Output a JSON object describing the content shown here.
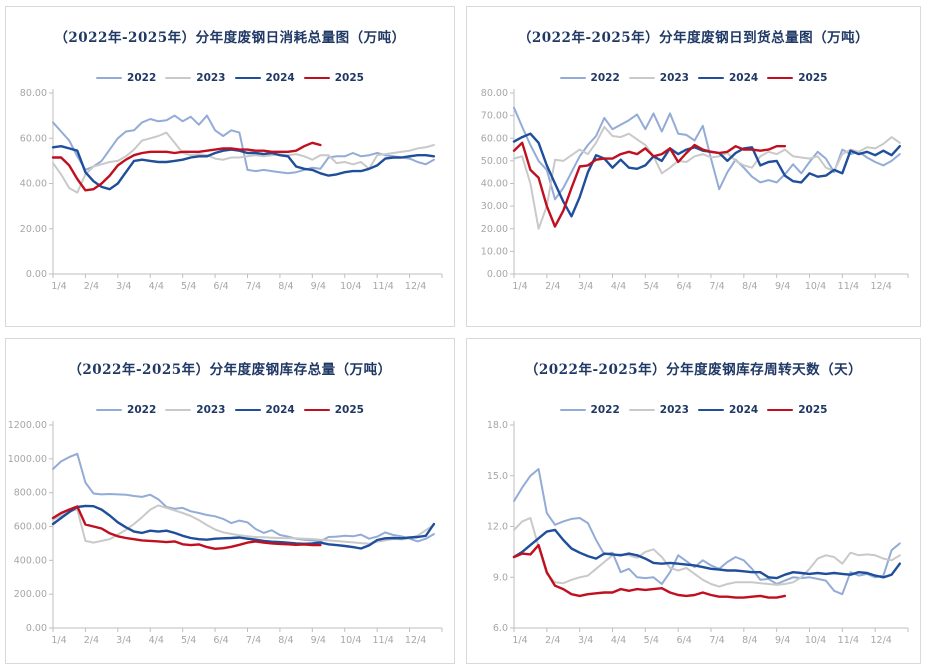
{
  "page": {
    "background": "#ffffff",
    "panel_border": "#d9d9d9"
  },
  "colors": {
    "title_text": "#1f3864",
    "legend_text": "#1f3864",
    "axis_line": "#bfbfbf",
    "tick_text": "#a6a6a6",
    "series": {
      "2022": "#93acd7",
      "2023": "#c9c9c9",
      "2024": "#1f4e9b",
      "2025": "#c00f1e"
    }
  },
  "x_axis_labels": [
    "1/4",
    "2/4",
    "3/4",
    "4/4",
    "5/4",
    "6/4",
    "7/4",
    "8/4",
    "9/4",
    "10/4",
    "11/4",
    "12/4"
  ],
  "chart_data": [
    {
      "type": "line",
      "title": "（2022年-2025年）分年度废钢日消耗总量图（万吨）",
      "ylabel": "万吨",
      "ylim": [
        0,
        80
      ],
      "ytick_step": 20,
      "ytick_decimals": 2,
      "x_range": [
        1,
        13
      ],
      "grid": false,
      "legend_position": "top",
      "legend": [
        "2022",
        "2023",
        "2024",
        "2025"
      ],
      "series": [
        {
          "name": "2022",
          "x0": 1,
          "dx": 0.25,
          "values": [
            67,
            63,
            59,
            52,
            46,
            47.5,
            50,
            55,
            60,
            63,
            63.5,
            67,
            68.5,
            67.5,
            68,
            70,
            67.5,
            69.5,
            66,
            70,
            63.5,
            61,
            63.5,
            62.5,
            46,
            45.5,
            46,
            45.5,
            45,
            44.5,
            45,
            46,
            47,
            46.5,
            51.5,
            52,
            52,
            53.5,
            52,
            52.5,
            53.5,
            52.5,
            52,
            51.5,
            51,
            49.5,
            48.5,
            50.5
          ]
        },
        {
          "name": "2023",
          "x0": 1,
          "dx": 0.25,
          "values": [
            49,
            44,
            38,
            36,
            44,
            47.5,
            48.5,
            49.5,
            50,
            52,
            55,
            59,
            60,
            61,
            62.5,
            58,
            53.5,
            52.5,
            53,
            52.5,
            51,
            50.5,
            51.5,
            51.5,
            52,
            52.5,
            52,
            52.5,
            53,
            52.5,
            53,
            52,
            50.5,
            52.5,
            52.5,
            49,
            49.5,
            48.5,
            49.5,
            46.5,
            52.5,
            53,
            53.5,
            54,
            54.5,
            55.5,
            56,
            57
          ]
        },
        {
          "name": "2024",
          "x0": 1,
          "dx": 0.25,
          "values": [
            56,
            56.5,
            55.5,
            54.5,
            45,
            41,
            38.5,
            37.5,
            40,
            45,
            50,
            50.5,
            50,
            49.5,
            49.5,
            50,
            50.5,
            51.5,
            52,
            52,
            53.5,
            54.5,
            55,
            54.5,
            53.5,
            53.5,
            53,
            53.5,
            52.5,
            52,
            47.5,
            46.5,
            46,
            44.5,
            43.5,
            44,
            45,
            45.5,
            45.5,
            46.5,
            48,
            51,
            51.5,
            51.5,
            52,
            52.5,
            52.5,
            52
          ]
        },
        {
          "name": "2025",
          "x0": 1,
          "dx": 0.25,
          "values": [
            51.5,
            51.5,
            48,
            42,
            37,
            37.5,
            40,
            43.5,
            48,
            50.5,
            52.5,
            53.5,
            54,
            54,
            54,
            53.5,
            54,
            54,
            54,
            54.5,
            55,
            55.5,
            55.5,
            55,
            55,
            54.5,
            54.5,
            54,
            54,
            54,
            54.5,
            56.5,
            58,
            57
          ]
        }
      ]
    },
    {
      "type": "line",
      "title": "（2022年-2025年）分年度废钢日到货总量图（万吨）",
      "ylabel": "万吨",
      "ylim": [
        0,
        80
      ],
      "ytick_step": 10,
      "ytick_decimals": 2,
      "x_range": [
        1,
        13
      ],
      "grid": false,
      "legend_position": "top",
      "legend": [
        "2022",
        "2023",
        "2024",
        "2025"
      ],
      "series": [
        {
          "name": "2022",
          "x0": 1,
          "dx": 0.25,
          "values": [
            73.5,
            65,
            57,
            50,
            46,
            33,
            38,
            45,
            52,
            57,
            61,
            69,
            64,
            66,
            68,
            70.5,
            64,
            71,
            63,
            71,
            62,
            61.5,
            59,
            65.5,
            51,
            37.5,
            45,
            50.5,
            47,
            43,
            40.5,
            41.5,
            40.5,
            44,
            48.5,
            44.5,
            49.5,
            54,
            51,
            45,
            55,
            53,
            54,
            51.5,
            49.5,
            48,
            50,
            53
          ]
        },
        {
          "name": "2023",
          "x0": 1,
          "dx": 0.25,
          "values": [
            51,
            52,
            40,
            20,
            30,
            50.5,
            50,
            52.5,
            55,
            53,
            58,
            65,
            61,
            60.5,
            62,
            59.5,
            57,
            52,
            44.5,
            47,
            50,
            49.5,
            52,
            53,
            51.5,
            52,
            53.5,
            50,
            48,
            47,
            52,
            54,
            53,
            55,
            52,
            51.5,
            51,
            52,
            47,
            45.5,
            53,
            55,
            54,
            56,
            55.5,
            57.5,
            60.5,
            58
          ]
        },
        {
          "name": "2024",
          "x0": 1,
          "dx": 0.25,
          "values": [
            58.5,
            60.5,
            62,
            58,
            48,
            40,
            32,
            25.5,
            34,
            45,
            52.5,
            51,
            47,
            50.5,
            47,
            46.5,
            48,
            52,
            50,
            55.5,
            53,
            55,
            56,
            54.5,
            54,
            53.5,
            50,
            53.5,
            55.5,
            56,
            48,
            49.5,
            50,
            43.5,
            41,
            40.5,
            44.5,
            43,
            43.5,
            46,
            44.5,
            54.5,
            53,
            54,
            52.5,
            54.5,
            52.5,
            56.5
          ]
        },
        {
          "name": "2025",
          "x0": 1,
          "dx": 0.25,
          "values": [
            54.5,
            58,
            46,
            42.5,
            30,
            21,
            28,
            38,
            47.5,
            48,
            50.5,
            51,
            51,
            53,
            54,
            53,
            55.5,
            52,
            53,
            55.5,
            49.5,
            53.5,
            57,
            55,
            54,
            53.5,
            54,
            56.5,
            55,
            55,
            54.5,
            55,
            56.5,
            56.5
          ]
        }
      ]
    },
    {
      "type": "line",
      "title": "（2022年-2025年）分年度废钢库存总量（万吨）",
      "ylabel": "万吨",
      "ylim": [
        0,
        1200
      ],
      "ytick_step": 200,
      "ytick_decimals": 2,
      "x_range": [
        1,
        13
      ],
      "grid": false,
      "legend_position": "top",
      "legend": [
        "2022",
        "2023",
        "2024",
        "2025"
      ],
      "series": [
        {
          "name": "2022",
          "x0": 1,
          "dx": 0.25,
          "values": [
            940,
            985,
            1010,
            1030,
            860,
            795,
            790,
            792,
            790,
            788,
            780,
            775,
            788,
            760,
            715,
            705,
            710,
            690,
            680,
            668,
            660,
            645,
            620,
            635,
            625,
            585,
            562,
            578,
            550,
            540,
            528,
            522,
            518,
            512,
            538,
            540,
            545,
            542,
            552,
            528,
            540,
            565,
            550,
            542,
            528,
            512,
            528,
            555
          ]
        },
        {
          "name": "2023",
          "x0": 1,
          "dx": 0.25,
          "values": [
            640,
            665,
            690,
            700,
            515,
            505,
            515,
            525,
            552,
            580,
            615,
            655,
            700,
            725,
            710,
            695,
            680,
            662,
            638,
            608,
            582,
            565,
            556,
            548,
            542,
            538,
            536,
            534,
            532,
            531,
            530,
            528,
            526,
            522,
            518,
            514,
            510,
            506,
            502,
            498,
            510,
            518,
            526,
            524,
            530,
            546,
            578,
            610
          ]
        },
        {
          "name": "2024",
          "x0": 1,
          "dx": 0.25,
          "values": [
            615,
            650,
            685,
            715,
            722,
            720,
            700,
            665,
            625,
            595,
            570,
            562,
            575,
            570,
            575,
            562,
            545,
            532,
            525,
            522,
            528,
            530,
            532,
            535,
            528,
            522,
            515,
            510,
            508,
            504,
            500,
            498,
            500,
            505,
            495,
            490,
            485,
            478,
            470,
            488,
            520,
            530,
            532,
            530,
            535,
            538,
            545,
            615
          ]
        },
        {
          "name": "2025",
          "x0": 1,
          "dx": 0.25,
          "values": [
            650,
            680,
            700,
            718,
            612,
            600,
            588,
            560,
            542,
            532,
            525,
            518,
            515,
            512,
            508,
            512,
            495,
            490,
            494,
            478,
            468,
            472,
            480,
            492,
            505,
            512,
            505,
            500,
            497,
            495,
            492,
            494,
            490,
            490
          ]
        }
      ]
    },
    {
      "type": "line",
      "title": "（2022年-2025年）分年度废钢库存周转天数（天）",
      "ylabel": "天",
      "ylim": [
        6,
        18
      ],
      "ytick_step": 3,
      "ytick_decimals": 1,
      "x_range": [
        1,
        13
      ],
      "grid": false,
      "legend_position": "top",
      "legend": [
        "2022",
        "2023",
        "2024",
        "2025"
      ],
      "series": [
        {
          "name": "2022",
          "x0": 1,
          "dx": 0.25,
          "values": [
            13.5,
            14.3,
            15,
            15.4,
            12.8,
            12.1,
            12.3,
            12.45,
            12.5,
            12.2,
            11.2,
            10.35,
            10.45,
            9.3,
            9.5,
            9,
            8.95,
            9,
            8.6,
            9.3,
            10.3,
            9.95,
            9.6,
            10,
            9.7,
            9.5,
            9.9,
            10.2,
            10,
            9.5,
            8.85,
            8.9,
            8.6,
            8.8,
            9,
            8.95,
            9,
            8.9,
            8.8,
            8.2,
            8,
            9.3,
            9.1,
            9.2,
            9,
            9.1,
            10.6,
            11
          ]
        },
        {
          "name": "2023",
          "x0": 1,
          "dx": 0.25,
          "values": [
            11.8,
            12.3,
            12.5,
            10.8,
            9.2,
            8.7,
            8.65,
            8.85,
            9,
            9.1,
            9.5,
            9.9,
            10.3,
            10.35,
            10.3,
            10.15,
            10.5,
            10.65,
            10.2,
            9.55,
            9.4,
            9.55,
            9.2,
            8.85,
            8.6,
            8.45,
            8.6,
            8.7,
            8.7,
            8.7,
            8.65,
            8.6,
            8.55,
            8.6,
            8.7,
            9,
            9.5,
            10.1,
            10.3,
            10.2,
            9.8,
            10.45,
            10.3,
            10.35,
            10.3,
            10.1,
            10,
            10.3
          ]
        },
        {
          "name": "2024",
          "x0": 1,
          "dx": 0.25,
          "values": [
            10.2,
            10.5,
            10.9,
            11.3,
            11.7,
            11.8,
            11.2,
            10.7,
            10.45,
            10.25,
            10.1,
            10.4,
            10.35,
            10.3,
            10.4,
            10.3,
            10.1,
            9.85,
            9.8,
            9.85,
            9.8,
            9.75,
            9.7,
            9.6,
            9.5,
            9.45,
            9.4,
            9.4,
            9.35,
            9.3,
            9.3,
            9,
            8.95,
            9.15,
            9.3,
            9.25,
            9.2,
            9.25,
            9.2,
            9.25,
            9.2,
            9.15,
            9.3,
            9.25,
            9.1,
            9,
            9.15,
            9.8
          ]
        },
        {
          "name": "2025",
          "x0": 1,
          "dx": 0.25,
          "values": [
            10.2,
            10.4,
            10.35,
            10.9,
            9.3,
            8.5,
            8.3,
            8,
            7.9,
            8,
            8.05,
            8.1,
            8.1,
            8.3,
            8.2,
            8.3,
            8.25,
            8.3,
            8.35,
            8.1,
            7.95,
            7.9,
            7.95,
            8.1,
            7.95,
            7.85,
            7.85,
            7.8,
            7.8,
            7.85,
            7.9,
            7.8,
            7.8,
            7.9
          ]
        }
      ]
    }
  ]
}
